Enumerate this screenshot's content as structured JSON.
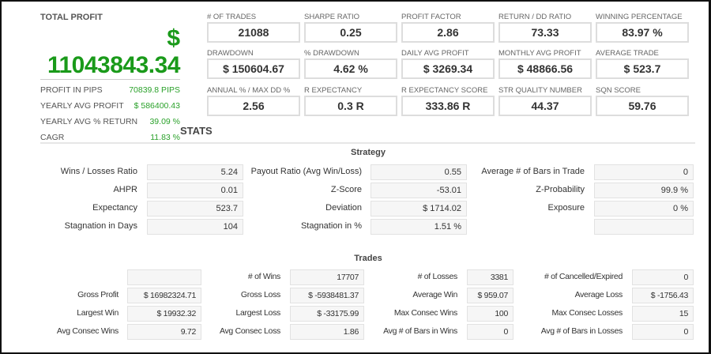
{
  "total_profit": {
    "title": "TOTAL PROFIT",
    "currency": "$",
    "value": "11043843.34"
  },
  "summary": [
    {
      "label": "PROFIT IN PIPS",
      "value": "70839.8 PIPS"
    },
    {
      "label": "YEARLY AVG PROFIT",
      "value": "$ 586400.43"
    },
    {
      "label": "YEARLY AVG % RETURN",
      "value": "39.09 %"
    },
    {
      "label": "CAGR",
      "value": "11.83 %"
    }
  ],
  "metrics": [
    {
      "label": "# OF TRADES",
      "value": "21088"
    },
    {
      "label": "SHARPE RATIO",
      "value": "0.25"
    },
    {
      "label": "PROFIT FACTOR",
      "value": "2.86"
    },
    {
      "label": "RETURN / DD RATIO",
      "value": "73.33"
    },
    {
      "label": "WINNING PERCENTAGE",
      "value": "83.97 %"
    },
    {
      "label": "DRAWDOWN",
      "value": "$ 150604.67"
    },
    {
      "label": "% DRAWDOWN",
      "value": "4.62 %"
    },
    {
      "label": "DAILY AVG PROFIT",
      "value": "$ 3269.34"
    },
    {
      "label": "MONTHLY AVG PROFIT",
      "value": "$ 48866.56"
    },
    {
      "label": "AVERAGE TRADE",
      "value": "$ 523.7"
    },
    {
      "label": "ANNUAL % / MAX DD %",
      "value": "2.56"
    },
    {
      "label": "R EXPECTANCY",
      "value": "0.3 R"
    },
    {
      "label": "R EXPECTANCY SCORE",
      "value": "333.86 R"
    },
    {
      "label": "STR QUALITY NUMBER",
      "value": "44.37"
    },
    {
      "label": "SQN SCORE",
      "value": "59.76"
    }
  ],
  "stats_title": "STATS",
  "strategy": {
    "title": "Strategy",
    "rows": [
      [
        {
          "label": "Wins / Losses Ratio",
          "value": "5.24"
        },
        {
          "label": "Payout Ratio (Avg Win/Loss)",
          "value": "0.55"
        },
        {
          "label": "Average # of Bars in Trade",
          "value": "0"
        }
      ],
      [
        {
          "label": "AHPR",
          "value": "0.01"
        },
        {
          "label": "Z-Score",
          "value": "-53.01"
        },
        {
          "label": "Z-Probability",
          "value": "99.9 %"
        }
      ],
      [
        {
          "label": "Expectancy",
          "value": "523.7"
        },
        {
          "label": "Deviation",
          "value": "$ 1714.02"
        },
        {
          "label": "Exposure",
          "value": "0 %"
        }
      ],
      [
        {
          "label": "Stagnation in Days",
          "value": "104"
        },
        {
          "label": "Stagnation in %",
          "value": "1.51 %"
        },
        {
          "label": "",
          "value": ""
        }
      ]
    ]
  },
  "trades": {
    "title": "Trades",
    "rows": [
      [
        {
          "label": "",
          "value": ""
        },
        {
          "label": "# of Wins",
          "value": "17707"
        },
        {
          "label": "# of Losses",
          "value": "3381"
        },
        {
          "label": "# of Cancelled/Expired",
          "value": "0"
        }
      ],
      [
        {
          "label": "Gross Profit",
          "value": "$ 16982324.71"
        },
        {
          "label": "Gross Loss",
          "value": "$ -5938481.37"
        },
        {
          "label": "Average Win",
          "value": "$ 959.07"
        },
        {
          "label": "Average Loss",
          "value": "$ -1756.43"
        }
      ],
      [
        {
          "label": "Largest Win",
          "value": "$ 19932.32"
        },
        {
          "label": "Largest Loss",
          "value": "$ -33175.99"
        },
        {
          "label": "Max Consec Wins",
          "value": "100"
        },
        {
          "label": "Max Consec Losses",
          "value": "15"
        }
      ],
      [
        {
          "label": "Avg Consec Wins",
          "value": "9.72"
        },
        {
          "label": "Avg Consec Loss",
          "value": "1.86"
        },
        {
          "label": "Avg # of Bars in Wins",
          "value": "0"
        },
        {
          "label": "Avg # of Bars in Losses",
          "value": "0"
        }
      ]
    ]
  }
}
